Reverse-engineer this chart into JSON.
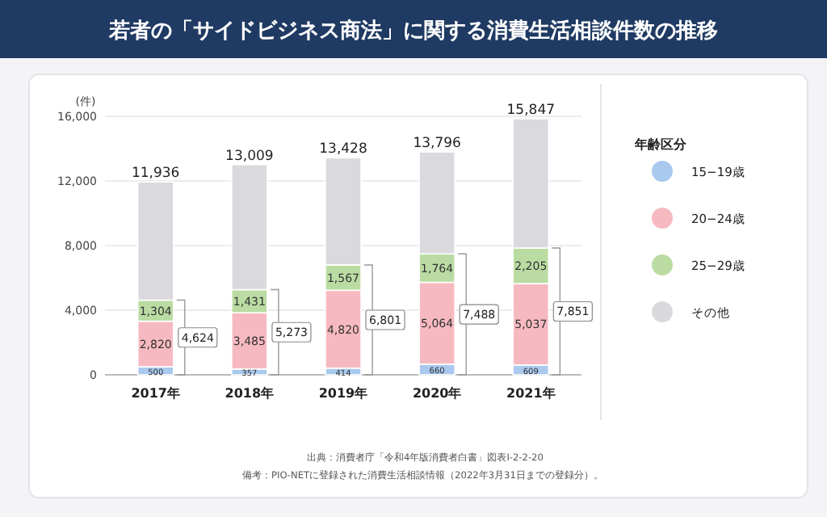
{
  "chart_data": {
    "type": "bar",
    "title": "若者の「サイドビジネス商法」に関する消費生活相談件数の推移",
    "ylabel": "(件)",
    "legend_title": "年齢区分",
    "categories": [
      "2017年",
      "2018年",
      "2019年",
      "2020年",
      "2021年"
    ],
    "stacked": true,
    "series": [
      {
        "name": "15−19歳",
        "color": "#a9c9ef",
        "values": [
          500,
          357,
          414,
          660,
          609
        ],
        "value_labels": [
          "500",
          "357",
          "414",
          "660",
          "609"
        ]
      },
      {
        "name": "20−24歳",
        "color": "#f7b9c1",
        "values": [
          2820,
          3485,
          4820,
          5064,
          5037
        ],
        "value_labels": [
          "2,820",
          "3,485",
          "4,820",
          "5,064",
          "5,037"
        ]
      },
      {
        "name": "25−29歳",
        "color": "#badca3",
        "values": [
          1304,
          1431,
          1567,
          1764,
          2205
        ],
        "value_labels": [
          "1,304",
          "1,431",
          "1,567",
          "1,764",
          "2,205"
        ]
      },
      {
        "name": "その他",
        "color": "#d9d9de",
        "values": [
          7312,
          7736,
          6627,
          6308,
          7996
        ]
      }
    ],
    "totals": [
      "11,936",
      "13,009",
      "13,428",
      "13,796",
      "15,847"
    ],
    "ylim": [
      0,
      16000
    ],
    "yticks": [
      0,
      {
        "value": 4000,
        "label": "4,000"
      },
      {
        "value": 8000,
        "label": "8,000"
      },
      {
        "value": 12000,
        "label": "12,000"
      },
      {
        "value": 16000,
        "label": "16,000"
      }
    ],
    "grid": "y",
    "legend": "right",
    "annotations": [
      "4,624",
      "5,273",
      "6,801",
      "7,488",
      "7,851",
      "出典：消費者庁「令和4年版消費者白書」図表Ⅰ-2-2-20",
      "備考：PIO-NETに登録された消費生活相談情報（2022年3月31日までの登録分）。"
    ]
  }
}
